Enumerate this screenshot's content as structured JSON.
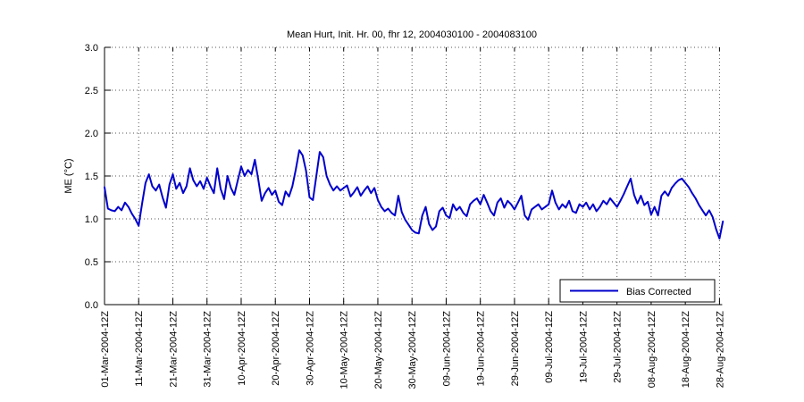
{
  "chart_data": {
    "type": "line",
    "title": "Mean Hurt, Init. Hr. 00, fhr 12, 2004030100 - 2004083100",
    "xlabel": "",
    "ylabel": "ME (°C)",
    "ylim": [
      0.0,
      3.0
    ],
    "ytick_labels": [
      "0.0",
      "0.5",
      "1.0",
      "1.5",
      "2.0",
      "2.5",
      "3.0"
    ],
    "ytick_values": [
      0.0,
      0.5,
      1.0,
      1.5,
      2.0,
      2.5,
      3.0
    ],
    "xtick_labels": [
      "01-Mar-2004-12Z",
      "11-Mar-2004-12Z",
      "21-Mar-2004-12Z",
      "31-Mar-2004-12Z",
      "10-Apr-2004-12Z",
      "20-Apr-2004-12Z",
      "30-Apr-2004-12Z",
      "10-May-2004-12Z",
      "20-May-2004-12Z",
      "30-May-2004-12Z",
      "09-Jun-2004-12Z",
      "19-Jun-2004-12Z",
      "29-Jun-2004-12Z",
      "09-Jul-2004-12Z",
      "19-Jul-2004-12Z",
      "29-Jul-2004-12Z",
      "08-Aug-2004-12Z",
      "18-Aug-2004-12Z",
      "28-Aug-2004-12Z"
    ],
    "xtick_interval_days": 10,
    "grid": true,
    "grid_style": "dotted",
    "axis_color": "#000000",
    "grid_color": "#555555",
    "legend": {
      "position": "lower right",
      "entries": [
        {
          "label": "Bias Corrected",
          "color": "#0000cc"
        }
      ]
    },
    "series": [
      {
        "name": "Bias Corrected",
        "color": "#0000cc",
        "start_day": 0,
        "day_step": 1,
        "values": [
          1.37,
          1.12,
          1.1,
          1.09,
          1.14,
          1.1,
          1.19,
          1.14,
          1.06,
          1.0,
          0.92,
          1.18,
          1.42,
          1.52,
          1.38,
          1.33,
          1.4,
          1.25,
          1.13,
          1.4,
          1.52,
          1.35,
          1.42,
          1.3,
          1.38,
          1.59,
          1.45,
          1.38,
          1.44,
          1.35,
          1.48,
          1.38,
          1.3,
          1.59,
          1.35,
          1.23,
          1.5,
          1.36,
          1.28,
          1.45,
          1.61,
          1.5,
          1.57,
          1.52,
          1.69,
          1.46,
          1.21,
          1.3,
          1.36,
          1.28,
          1.33,
          1.2,
          1.16,
          1.32,
          1.26,
          1.38,
          1.58,
          1.8,
          1.74,
          1.56,
          1.25,
          1.22,
          1.5,
          1.78,
          1.72,
          1.5,
          1.4,
          1.33,
          1.38,
          1.33,
          1.36,
          1.39,
          1.26,
          1.31,
          1.37,
          1.27,
          1.33,
          1.38,
          1.3,
          1.36,
          1.22,
          1.14,
          1.09,
          1.12,
          1.07,
          1.04,
          1.27,
          1.08,
          0.99,
          0.93,
          0.87,
          0.84,
          0.83,
          1.04,
          1.14,
          0.94,
          0.87,
          0.91,
          1.09,
          1.13,
          1.04,
          1.01,
          1.17,
          1.1,
          1.14,
          1.07,
          1.03,
          1.17,
          1.21,
          1.24,
          1.17,
          1.28,
          1.19,
          1.09,
          1.04,
          1.19,
          1.24,
          1.13,
          1.21,
          1.17,
          1.11,
          1.19,
          1.27,
          1.04,
          0.99,
          1.11,
          1.14,
          1.17,
          1.11,
          1.14,
          1.17,
          1.33,
          1.19,
          1.11,
          1.17,
          1.13,
          1.21,
          1.09,
          1.07,
          1.17,
          1.14,
          1.19,
          1.11,
          1.17,
          1.09,
          1.14,
          1.21,
          1.17,
          1.24,
          1.19,
          1.14,
          1.21,
          1.29,
          1.38,
          1.47,
          1.28,
          1.18,
          1.27,
          1.16,
          1.2,
          1.05,
          1.14,
          1.04,
          1.27,
          1.32,
          1.27,
          1.36,
          1.41,
          1.45,
          1.47,
          1.42,
          1.37,
          1.3,
          1.24,
          1.16,
          1.1,
          1.04,
          1.1,
          1.02,
          0.88,
          0.77,
          0.97
        ]
      }
    ]
  }
}
